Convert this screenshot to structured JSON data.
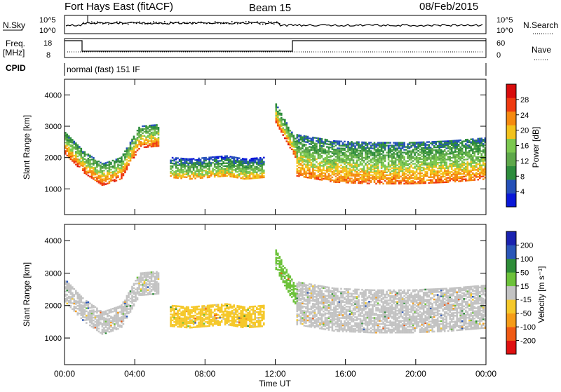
{
  "header": {
    "station": "Fort Hays East (fitACF)",
    "beam": "Beam 15",
    "date": "08/Feb/2015"
  },
  "summary": {
    "nsky_label": "N.Sky",
    "nsky_ticks": [
      "10^5",
      "10^0"
    ],
    "nsearch_label": "N.Search",
    "freq_label": "Freq.",
    "freq_unit": "[MHz]",
    "freq_ticks": [
      "18",
      "8"
    ],
    "nave_ticks": [
      "60",
      "0"
    ],
    "nave_label": "Nave",
    "cpid_label": "CPID",
    "cpid_value": "normal (fast) 151 IF"
  },
  "colors": {
    "power": [
      "#0a18d8",
      "#2550b8",
      "#2d8c3c",
      "#5ea84a",
      "#7cc850",
      "#f2c21c",
      "#f58a10",
      "#ee3a10",
      "#d80c0c"
    ],
    "velocity": [
      "#e01010",
      "#f05a14",
      "#f59c18",
      "#f5c82a",
      "#c3c3c3",
      "#6cc23a",
      "#2e8c38",
      "#2a56b8",
      "#1a22b0"
    ]
  },
  "chart_data": [
    {
      "type": "heatmap",
      "title": "Power",
      "ylabel": "Slant Range [km]",
      "xlabel": "Time UT",
      "xlim": [
        0,
        24
      ],
      "ylim": [
        180,
        4500
      ],
      "x_ticks": [
        "00:00",
        "04:00",
        "08:00",
        "12:00",
        "16:00",
        "20:00",
        "00:00"
      ],
      "y_ticks": [
        1000,
        2000,
        3000,
        4000
      ],
      "colorbar": {
        "label": "Power [dB]",
        "ticks": [
          4,
          8,
          12,
          16,
          20,
          24,
          28
        ],
        "range": [
          0,
          32
        ]
      },
      "regions": [
        {
          "name": "morning-band",
          "t": [
            0,
            5.3
          ],
          "r0": [
            2100,
            1500,
            1100,
            1300,
            2300,
            2350
          ],
          "width": 700,
          "level": 14
        },
        {
          "name": "midday-patches",
          "t": [
            6.0,
            11.3
          ],
          "r0": [
            1350,
            1300,
            1350,
            1400,
            1300,
            1350
          ],
          "width": 650,
          "level": 9
        },
        {
          "name": "afternoon-arc",
          "t": [
            12.0,
            13.2
          ],
          "r0": [
            3100,
            2700,
            2300,
            1900
          ],
          "width": 600,
          "level": 14
        },
        {
          "name": "evening-band",
          "t": [
            13.2,
            24
          ],
          "r0": [
            1400,
            1200,
            1150,
            1150,
            1200,
            1300
          ],
          "width": 1350,
          "level": 12
        }
      ]
    },
    {
      "type": "heatmap",
      "title": "Velocity",
      "ylabel": "Slant Range [km]",
      "xlabel": "Time UT",
      "xlim": [
        0,
        24
      ],
      "ylim": [
        180,
        4500
      ],
      "x_ticks": [
        "00:00",
        "04:00",
        "08:00",
        "12:00",
        "16:00",
        "20:00",
        "00:00"
      ],
      "y_ticks": [
        1000,
        2000,
        3000,
        4000
      ],
      "colorbar": {
        "label": "Velocity [m s⁻¹]",
        "ticks": [
          200,
          100,
          50,
          15,
          -15,
          -50,
          -100,
          -200
        ],
        "range": [
          -250,
          250
        ]
      },
      "regions": [
        {
          "name": "morning-band",
          "t": [
            0,
            5.3
          ],
          "r0": [
            2100,
            1500,
            1100,
            1300,
            2300,
            2350
          ],
          "width": 700,
          "level": 0
        },
        {
          "name": "midday-patches",
          "t": [
            6.0,
            11.3
          ],
          "r0": [
            1350,
            1300,
            1350,
            1400,
            1300,
            1350
          ],
          "width": 650,
          "level": -60
        },
        {
          "name": "afternoon-arc",
          "t": [
            12.0,
            13.2
          ],
          "r0": [
            3100,
            2700,
            2300,
            1900
          ],
          "width": 600,
          "level": 60
        },
        {
          "name": "evening-band",
          "t": [
            13.2,
            24
          ],
          "r0": [
            1400,
            1200,
            1150,
            1150,
            1200,
            1300
          ],
          "width": 1350,
          "level": 0
        }
      ]
    }
  ]
}
